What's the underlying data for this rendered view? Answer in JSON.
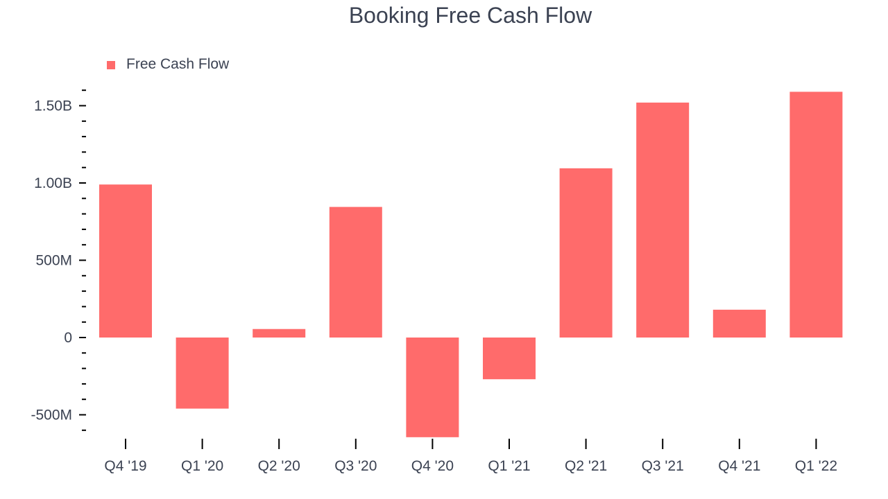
{
  "chart_data": {
    "type": "bar",
    "title": "Booking Free Cash Flow",
    "xlabel": "",
    "ylabel": "",
    "categories": [
      "Q4 '19",
      "Q1 '20",
      "Q2 '20",
      "Q3 '20",
      "Q4 '20",
      "Q1 '21",
      "Q2 '21",
      "Q3 '21",
      "Q4 '21",
      "Q1 '22"
    ],
    "series": [
      {
        "name": "Free Cash Flow",
        "color": "#ff6b6b",
        "values": [
          990000000,
          -460000000,
          55000000,
          845000000,
          -645000000,
          -270000000,
          1095000000,
          1520000000,
          180000000,
          1590000000
        ]
      }
    ],
    "ylim": [
      -600000000,
      1600000000
    ],
    "yticks": [
      {
        "value": -500000000,
        "label": "-500M"
      },
      {
        "value": 0,
        "label": "0"
      },
      {
        "value": 500000000,
        "label": "500M"
      },
      {
        "value": 1000000000,
        "label": "1.00B"
      },
      {
        "value": 1500000000,
        "label": "1.50B"
      }
    ],
    "grid": false,
    "legend_position": "top-left"
  }
}
